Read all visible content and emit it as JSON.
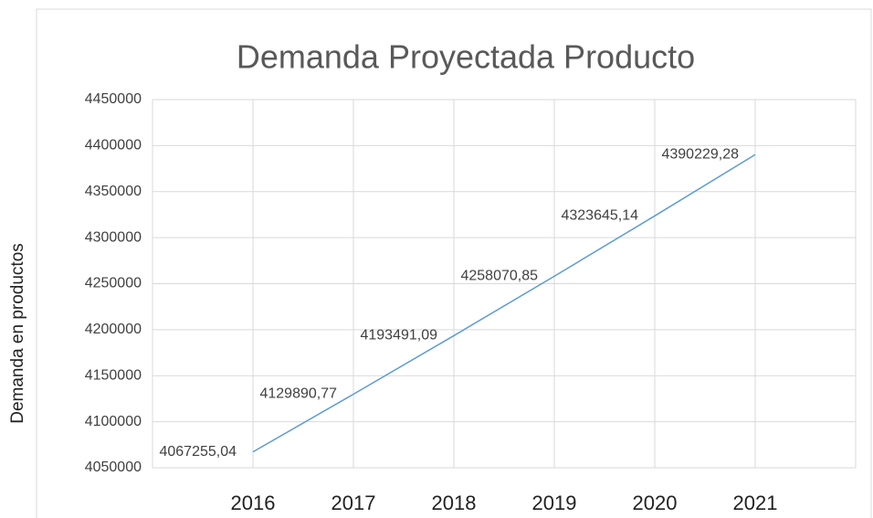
{
  "chart_data": {
    "type": "line",
    "title": "Demanda Proyectada Producto",
    "y_label": "Demanda en productos",
    "categories": [
      "2016",
      "2017",
      "2018",
      "2019",
      "2020",
      "2021"
    ],
    "series": [
      {
        "name": "Demanda",
        "color": "#5b9bd5",
        "values": [
          4067255.04,
          4129890.77,
          4193491.09,
          4258070.85,
          4323645.14,
          4390229.28
        ],
        "value_labels": [
          "4067255,04",
          "4129890,77",
          "4193491,09",
          "4258070,85",
          "4323645,14",
          "4390229,28"
        ]
      }
    ],
    "ylim": [
      4050000,
      4450000
    ],
    "yticks": [
      4050000,
      4100000,
      4150000,
      4200000,
      4250000,
      4300000,
      4350000,
      4400000,
      4450000
    ],
    "grid": true
  }
}
